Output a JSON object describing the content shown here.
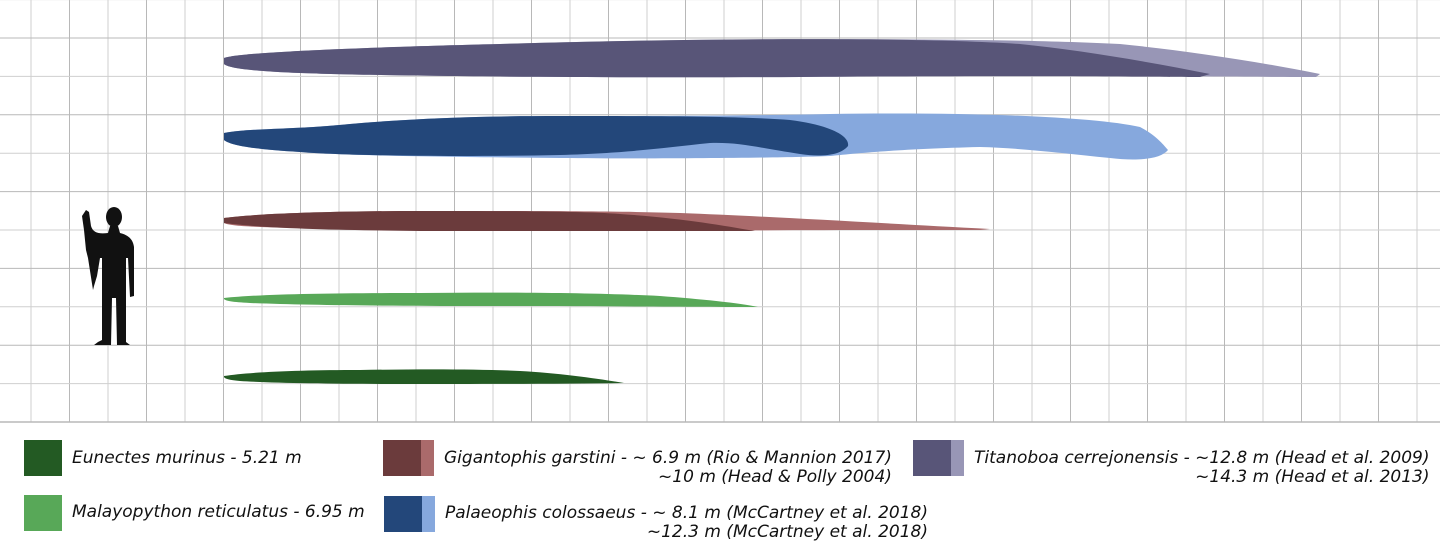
{
  "colors": {
    "grid_line": "#cfcfcf",
    "grid_axis": "#9a9a9a",
    "human": "#111111",
    "eunectes": "#235a23",
    "malayopython": "#58a858",
    "gigantophis_dark": "#6b3b3c",
    "gigantophis_light": "#aa6a6b",
    "palaeophis_dark": "#23477a",
    "palaeophis_light": "#86a8dd",
    "titanoboa_dark": "#585578",
    "titanoboa_light": "#9896b6"
  },
  "chart_data": {
    "type": "size-comparison",
    "unit": "m",
    "species": [
      {
        "name": "Eunectes murinus",
        "length": 5.21
      },
      {
        "name": "Malayopython reticulatus",
        "length": 6.95
      },
      {
        "name": "Gigantophis garstini",
        "length_min": 6.9,
        "length_max": 10
      },
      {
        "name": "Palaeophis colossaeus",
        "length_min": 8.1,
        "length_max": 12.3
      },
      {
        "name": "Titanoboa cerrejonensis",
        "length_min": 12.8,
        "length_max": 14.3
      }
    ]
  },
  "legend": {
    "eunectes": {
      "line1": "Eunectes murinus - 5.21 m"
    },
    "malayopython": {
      "line1": "Malayopython reticulatus - 6.95 m"
    },
    "gigantophis": {
      "line1": "Gigantophis garstini - ~ 6.9 m  (Rio & Mannion 2017)",
      "line2": "~10 m  (Head & Polly 2004)"
    },
    "palaeophis": {
      "line1": "Palaeophis colossaeus - ~ 8.1 m (McCartney et al. 2018)",
      "line2": "~12.3 m (McCartney et al. 2018)"
    },
    "titanoboa": {
      "line1": "Titanoboa cerrejonensis - ~12.8 m  (Head et al. 2009)",
      "line2": "~14.3 m  (Head et al. 2013)"
    }
  }
}
